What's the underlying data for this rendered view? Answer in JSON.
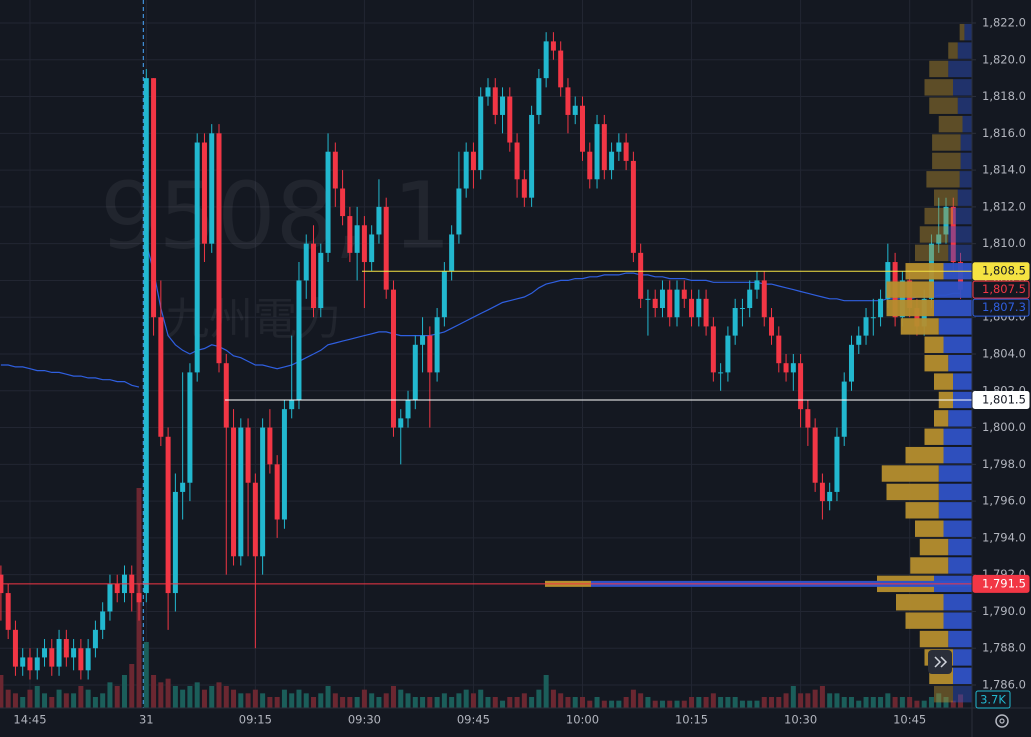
{
  "chart_data": {
    "type": "candlestick",
    "watermark": {
      "symbol": "9508, 1",
      "name": "九州電力"
    },
    "categories": [
      null,
      null,
      null,
      null,
      "14:45",
      null,
      null,
      null,
      null,
      null,
      null,
      null,
      null,
      null,
      null,
      null,
      null,
      null,
      null,
      null,
      "31",
      null,
      null,
      null,
      null,
      null,
      null,
      null,
      null,
      null,
      null,
      null,
      null,
      null,
      null,
      "09:15",
      null,
      null,
      null,
      null,
      null,
      null,
      null,
      null,
      null,
      null,
      null,
      null,
      null,
      null,
      "09:30",
      null,
      null,
      null,
      null,
      null,
      null,
      null,
      null,
      null,
      null,
      null,
      null,
      null,
      null,
      "09:45",
      null,
      null,
      null,
      null,
      null,
      null,
      null,
      null,
      null,
      null,
      null,
      null,
      null,
      null,
      "10:00",
      null,
      null,
      null,
      null,
      null,
      null,
      null,
      null,
      null,
      null,
      null,
      null,
      null,
      null,
      "10:15",
      null,
      null,
      null,
      null,
      null,
      null,
      null,
      null,
      null,
      null,
      null,
      null,
      null,
      null,
      "10:30",
      null,
      null,
      null,
      null,
      null,
      null,
      null,
      null,
      null,
      null,
      null,
      null,
      null,
      null,
      "10:45",
      null,
      null,
      null,
      null,
      null,
      null,
      null
    ],
    "open": [
      1792,
      1791,
      1789,
      1787,
      1787.5,
      1786.8,
      1787.5,
      1788,
      1787,
      1788.5,
      1787.5,
      1788,
      1786.8,
      1788,
      1789,
      1790,
      1791.5,
      1791,
      1792,
      1791,
      1791,
      1819,
      1806,
      1799.5,
      1791,
      1796.5,
      1797,
      1803,
      1815.5,
      1810,
      1816,
      1803.5,
      1800,
      1793,
      1800,
      1797,
      1793,
      1800,
      1798,
      1795,
      1801,
      1801.5,
      1808,
      1810,
      1806.5,
      1809.5,
      1815,
      1813,
      1811.5,
      1809.5,
      1811,
      1809,
      1810.5,
      1812,
      1807.5,
      1800,
      1800.5,
      1801.5,
      1804.5,
      1805,
      1803,
      1806,
      1808.5,
      1810.5,
      1813,
      1815,
      1814,
      1818,
      1818.5,
      1817,
      1818,
      1815.5,
      1813.5,
      1812.5,
      1817,
      1819,
      1821,
      1820.5,
      1818.5,
      1817,
      1817.5,
      1815,
      1813.5,
      1816.5,
      1814,
      1815,
      1815.5,
      1814.5,
      1809.5,
      1807,
      1807,
      1806.5,
      1807.5,
      1806,
      1807.5,
      1807,
      1806,
      1807,
      1805.5,
      1803,
      1803,
      1805,
      1806.5,
      1806.5,
      1807.5,
      1808,
      1806,
      1805,
      1803.5,
      1803,
      1803.5,
      1801,
      1800,
      1797,
      1796,
      1796.5,
      1799.5,
      1802.5,
      1804.5,
      1805,
      1806,
      1806,
      1807,
      1809,
      1806,
      1808,
      1806.5,
      1805.5,
      1807,
      1810,
      1810.5,
      1812,
      1809
    ],
    "high": [
      1792.5,
      1791.5,
      1789.5,
      1788,
      1788,
      1788,
      1788.5,
      1788.5,
      1789,
      1789,
      1788.5,
      1788.5,
      1788.5,
      1789.5,
      1790.5,
      1792,
      1792,
      1792.5,
      1792.5,
      1791.5,
      1819.5,
      1819,
      1808,
      1800,
      1797.5,
      1803,
      1803.5,
      1816,
      1816,
      1816.5,
      1816.5,
      1804,
      1801,
      1800.5,
      1800.5,
      1797.5,
      1800.5,
      1801,
      1798.5,
      1801.5,
      1805,
      1809,
      1810.5,
      1811,
      1810,
      1816,
      1815.5,
      1814,
      1812,
      1812,
      1811.5,
      1811,
      1813.5,
      1812.5,
      1808,
      1801,
      1802,
      1805,
      1806,
      1805.5,
      1806.5,
      1809,
      1811,
      1815,
      1815.5,
      1815.5,
      1818.5,
      1819,
      1819,
      1818.5,
      1818.5,
      1816,
      1814,
      1817.5,
      1819.5,
      1821.5,
      1821.5,
      1821,
      1819,
      1818,
      1818,
      1815.5,
      1817,
      1817,
      1815.5,
      1816,
      1816,
      1815,
      1810,
      1807.5,
      1807.5,
      1808,
      1808,
      1808,
      1808,
      1807.5,
      1807.5,
      1807.5,
      1806,
      1803.5,
      1805.5,
      1807,
      1807,
      1808,
      1808.5,
      1808.5,
      1806.5,
      1805.5,
      1804,
      1804,
      1804,
      1801.5,
      1800.5,
      1797.5,
      1797,
      1800,
      1803,
      1805,
      1805.5,
      1806.5,
      1807,
      1807.5,
      1810,
      1809.5,
      1808.5,
      1808.5,
      1807,
      1807.5,
      1810.5,
      1812.5,
      1812.5,
      1812.5,
      1809.5
    ],
    "low": [
      1789.5,
      1788.5,
      1786.5,
      1786.5,
      1786.3,
      1786.3,
      1787,
      1786.5,
      1786.5,
      1787,
      1786.8,
      1786.3,
      1786.3,
      1787.5,
      1788.5,
      1789.5,
      1790.5,
      1790.5,
      1790,
      1789.5,
      1790.5,
      1805,
      1799,
      1789,
      1790,
      1795,
      1796,
      1802.5,
      1809,
      1809.5,
      1803,
      1792,
      1792.5,
      1792.5,
      1793,
      1788,
      1792,
      1797.5,
      1794,
      1794.5,
      1800.5,
      1801,
      1807,
      1806,
      1806,
      1809,
      1812,
      1811,
      1809,
      1808,
      1806.5,
      1808.5,
      1810,
      1807,
      1799.5,
      1798,
      1800,
      1801,
      1803,
      1800,
      1802.5,
      1805.5,
      1808,
      1810,
      1812.5,
      1813,
      1813.5,
      1817.5,
      1816.5,
      1816,
      1815,
      1812.5,
      1812,
      1812,
      1816.5,
      1818.5,
      1820,
      1818,
      1816,
      1816.5,
      1814.5,
      1813,
      1813,
      1813.5,
      1813.5,
      1814.5,
      1814,
      1809,
      1806.5,
      1805,
      1806,
      1806,
      1805.5,
      1805.5,
      1806.5,
      1805.5,
      1805.5,
      1805,
      1802.5,
      1802,
      1802.5,
      1804.5,
      1805.5,
      1806,
      1807,
      1805.5,
      1804.5,
      1803,
      1802.5,
      1802,
      1800,
      1799,
      1796.5,
      1795,
      1795.5,
      1796,
      1799,
      1802,
      1804,
      1804.5,
      1805,
      1805.5,
      1806.5,
      1805.5,
      1805.5,
      1806,
      1805,
      1805,
      1806.5,
      1809.5,
      1810,
      1808.5,
      1807
    ],
    "close": [
      1791,
      1789,
      1787,
      1787.5,
      1786.8,
      1787.5,
      1788,
      1787,
      1788.5,
      1787.5,
      1788,
      1786.8,
      1788,
      1789,
      1790,
      1791.5,
      1791,
      1792,
      1791,
      1790.5,
      1819,
      1806,
      1799.5,
      1791,
      1796.5,
      1797,
      1803,
      1815.5,
      1810,
      1816,
      1803.5,
      1800,
      1793,
      1800,
      1797,
      1793,
      1800,
      1798,
      1795,
      1801,
      1801.5,
      1808,
      1810,
      1806.5,
      1809.5,
      1815,
      1813,
      1811.5,
      1809.5,
      1811,
      1809,
      1810.5,
      1812,
      1807.5,
      1800,
      1800.5,
      1801.5,
      1804.5,
      1805,
      1803,
      1806,
      1808.5,
      1810.5,
      1813,
      1815,
      1814,
      1818,
      1818.5,
      1817,
      1818,
      1815.5,
      1813.5,
      1812.5,
      1817,
      1819,
      1821,
      1820.5,
      1818.5,
      1817,
      1817.5,
      1815,
      1813.5,
      1816.5,
      1814,
      1815,
      1815.5,
      1814.5,
      1809.5,
      1807,
      1807,
      1806.5,
      1807.5,
      1806,
      1807.5,
      1807,
      1806,
      1807,
      1805.5,
      1803,
      1803,
      1805,
      1806.5,
      1806.5,
      1807.5,
      1808,
      1806,
      1805,
      1803.5,
      1803,
      1803.5,
      1801,
      1800,
      1797,
      1796,
      1796.5,
      1799.5,
      1802.5,
      1804.5,
      1805,
      1806,
      1806,
      1807,
      1809,
      1806,
      1808,
      1806.5,
      1805.5,
      1807,
      1810,
      1810.5,
      1812,
      1809,
      1807.5
    ],
    "up_color": "#22b8cf",
    "down_color": "#f23645",
    "volume": {
      "values": [
        9000,
        5000,
        4000,
        3000,
        5000,
        6000,
        4000,
        3000,
        5000,
        4000,
        4000,
        6000,
        5000,
        3000,
        4000,
        7000,
        6000,
        9000,
        12000,
        60000,
        18000,
        9000,
        7000,
        8000,
        6000,
        5000,
        6000,
        7000,
        5000,
        6000,
        7000,
        6000,
        5000,
        4000,
        4000,
        5000,
        4000,
        3000,
        3000,
        5000,
        4000,
        5000,
        4000,
        3000,
        4000,
        6000,
        4000,
        3000,
        3000,
        3000,
        5000,
        4000,
        3000,
        4000,
        6000,
        5000,
        4000,
        3000,
        3000,
        3000,
        3000,
        4000,
        3000,
        4000,
        5000,
        4000,
        5000,
        3000,
        3000,
        2000,
        3000,
        3000,
        4000,
        3000,
        5000,
        9000,
        5000,
        4000,
        3000,
        3000,
        3000,
        2000,
        3000,
        2000,
        2000,
        2000,
        3000,
        5000,
        4000,
        3000,
        2000,
        2000,
        2000,
        2000,
        2000,
        3000,
        3000,
        3000,
        4000,
        3000,
        3000,
        3000,
        2000,
        2000,
        2000,
        3000,
        3000,
        3000,
        4000,
        6000,
        4000,
        4000,
        5000,
        6000,
        4000,
        4000,
        3000,
        3000,
        2000,
        3000,
        3000,
        3000,
        4000,
        3000,
        3000,
        3000,
        2000,
        2000,
        3000,
        4000,
        3000,
        2000,
        3700
      ],
      "last_value_label": "3.7K",
      "up_color": "#1b5e5a",
      "down_color": "#6b2731"
    },
    "vwap": {
      "color": "#2f5fe0",
      "values": [
        1803.4,
        1803.4,
        1803.3,
        1803.3,
        1803.2,
        1803.1,
        1803.1,
        1803,
        1803,
        1802.9,
        1802.8,
        1802.8,
        1802.7,
        1802.7,
        1802.6,
        1802.6,
        1802.5,
        1802.5,
        1802.3,
        1802.2,
        1810,
        1808.5,
        1806.5,
        1805,
        1804.5,
        1804.2,
        1804,
        1804.2,
        1804.3,
        1804.5,
        1804.4,
        1804.2,
        1803.9,
        1803.8,
        1803.6,
        1803.4,
        1803.4,
        1803.3,
        1803.2,
        1803.3,
        1803.4,
        1803.6,
        1803.8,
        1804,
        1804.2,
        1804.5,
        1804.6,
        1804.7,
        1804.8,
        1804.9,
        1805,
        1805.1,
        1805.2,
        1805.2,
        1805.1,
        1805,
        1805,
        1805,
        1805,
        1805,
        1805.1,
        1805.2,
        1805.4,
        1805.6,
        1805.8,
        1806,
        1806.2,
        1806.4,
        1806.6,
        1806.8,
        1806.9,
        1807,
        1807.1,
        1807.3,
        1807.6,
        1807.8,
        1807.9,
        1808,
        1808,
        1808.1,
        1808.1,
        1808.2,
        1808.2,
        1808.3,
        1808.3,
        1808.3,
        1808.4,
        1808.4,
        1808.3,
        1808.3,
        1808.2,
        1808.2,
        1808.1,
        1808.1,
        1808.1,
        1808,
        1808,
        1808,
        1807.9,
        1807.9,
        1807.9,
        1807.9,
        1807.9,
        1807.9,
        1807.9,
        1807.8,
        1807.8,
        1807.7,
        1807.6,
        1807.5,
        1807.4,
        1807.3,
        1807.2,
        1807.1,
        1807,
        1807,
        1806.9,
        1806.9,
        1806.9,
        1806.9,
        1806.9,
        1806.9,
        1807,
        1807,
        1807,
        1807,
        1807.1,
        1807.1,
        1807.1,
        1807.2,
        1807.2,
        1807.3,
        1807.3
      ]
    },
    "volume_profile": {
      "price": [
        1821.5,
        1820.5,
        1819.5,
        1818.5,
        1817.5,
        1816.5,
        1815.5,
        1814.5,
        1813.5,
        1812.5,
        1811.5,
        1810.5,
        1809.5,
        1808.5,
        1807.5,
        1806.5,
        1805.5,
        1804.5,
        1803.5,
        1802.5,
        1801.5,
        1800.5,
        1799.5,
        1798.5,
        1797.5,
        1796.5,
        1795.5,
        1794.5,
        1793.5,
        1792.5,
        1791.5,
        1790.5,
        1789.5,
        1788.5,
        1787.5,
        1786.5,
        1785.5
      ],
      "gold": [
        0.5,
        1,
        2,
        3,
        3,
        2.5,
        3,
        3,
        3.5,
        2.5,
        3,
        3,
        3.5,
        4,
        5,
        5,
        4,
        2,
        2.5,
        2,
        1.5,
        1.5,
        2,
        4,
        6,
        5.5,
        3.5,
        3,
        3,
        4,
        6,
        5,
        4,
        3,
        3,
        2.5,
        2
      ],
      "blue": [
        0.8,
        1.5,
        2.5,
        2,
        1.5,
        1,
        1.2,
        1.2,
        1.3,
        1.5,
        2,
        2.5,
        2.5,
        3,
        4,
        4,
        3.5,
        3,
        2.5,
        2,
        2,
        2.5,
        3,
        3,
        3.5,
        3.5,
        3.5,
        3,
        2.5,
        2.5,
        4,
        3,
        3,
        2.5,
        2,
        2,
        2
      ],
      "gold_color": "#b58e2e",
      "blue_color": "#2f52c6",
      "value_area": [
        1786,
        1809
      ]
    },
    "price_lines": [
      {
        "value": 1808.5,
        "label": "1,808.5",
        "color": "#f5e342",
        "style": "filled",
        "line": true
      },
      {
        "value": 1807.5,
        "label": "1,807.5",
        "color": "#f23645",
        "style": "outline",
        "line": false
      },
      {
        "value": 1807.3,
        "label": "1,807.3",
        "color": "#2f5fe0",
        "style": "outline",
        "line": false
      },
      {
        "value": 1801.5,
        "label": "1,801.5",
        "color": "#ffffff",
        "style": "filled",
        "line": true
      },
      {
        "value": 1791.5,
        "label": "1,791.5",
        "color": "#f23645",
        "style": "filled",
        "line": true
      }
    ],
    "ylim": [
      1784.75,
      1823.25
    ],
    "yticks": [
      {
        "value": 1786,
        "label": "1,786.0"
      },
      {
        "value": 1788,
        "label": "1,788.0"
      },
      {
        "value": 1790,
        "label": "1,790.0"
      },
      {
        "value": 1792,
        "label": "1,792.0"
      },
      {
        "value": 1794,
        "label": "1,794.0"
      },
      {
        "value": 1796,
        "label": "1,796.0"
      },
      {
        "value": 1798,
        "label": "1,798.0"
      },
      {
        "value": 1800,
        "label": "1,800.0"
      },
      {
        "value": 1802,
        "label": "1,802.0"
      },
      {
        "value": 1804,
        "label": "1,804.0"
      },
      {
        "value": 1806,
        "label": "1,806.0"
      },
      {
        "value": 1808,
        "label": "1,808.0"
      },
      {
        "value": 1810,
        "label": "1,810.0"
      },
      {
        "value": 1812,
        "label": "1,812.0"
      },
      {
        "value": 1814,
        "label": "1,814.0"
      },
      {
        "value": 1816,
        "label": "1,816.0"
      },
      {
        "value": 1818,
        "label": "1,818.0"
      },
      {
        "value": 1820,
        "label": "1,820.0"
      },
      {
        "value": 1822,
        "label": "1,822.0"
      }
    ],
    "grid": true
  }
}
